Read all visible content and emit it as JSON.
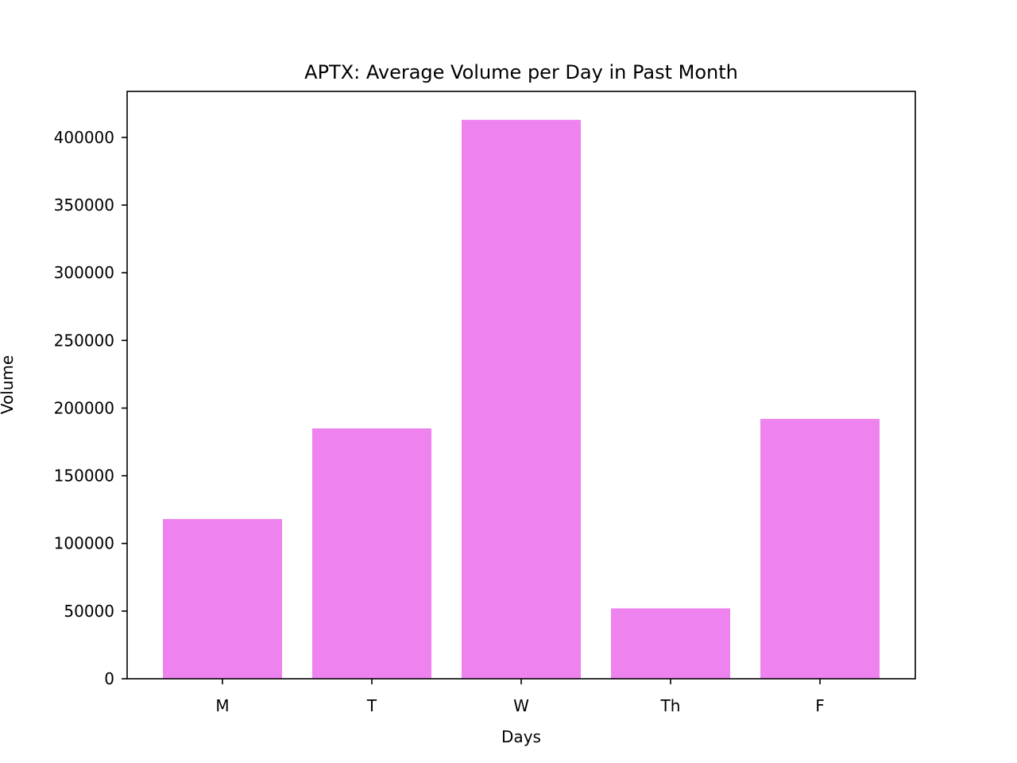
{
  "chart_data": {
    "type": "bar",
    "title": "APTX: Average Volume per Day in Past Month",
    "xlabel": "Days",
    "ylabel": "Volume",
    "categories": [
      "M",
      "T",
      "W",
      "Th",
      "F"
    ],
    "values": [
      118000,
      185000,
      413000,
      52000,
      192000
    ],
    "ylim": [
      0,
      434000
    ],
    "yticks": [
      0,
      50000,
      100000,
      150000,
      200000,
      250000,
      300000,
      350000,
      400000
    ],
    "bar_color": "#ee82ee",
    "grid": false,
    "legend": "none"
  }
}
